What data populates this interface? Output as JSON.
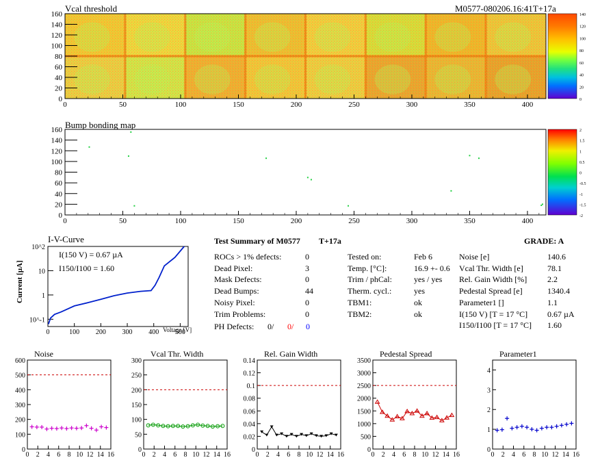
{
  "header": {
    "vcal_title": "Vcal threshold",
    "module_label": "M0577-080206.16:41T+17a",
    "bump_title": "Bump bonding map"
  },
  "maps": {
    "x_ticks": [
      "0",
      "50",
      "100",
      "150",
      "200",
      "250",
      "300",
      "350",
      "400"
    ],
    "y_ticks": [
      "0",
      "20",
      "40",
      "60",
      "80",
      "100",
      "120",
      "140",
      "160"
    ],
    "x_range": [
      0,
      416
    ],
    "y_range": [
      0,
      160
    ],
    "vcal_palette_labels": [
      "140",
      "120",
      "100",
      "80",
      "60",
      "40",
      "20",
      "0"
    ],
    "bump_palette_labels": [
      "2",
      "1.5",
      "1",
      "0.5",
      "0",
      "-0.5",
      "-1",
      "-1.5",
      "-2"
    ],
    "bump_points": [
      {
        "x": 21,
        "y": 127
      },
      {
        "x": 55,
        "y": 110
      },
      {
        "x": 57,
        "y": 155
      },
      {
        "x": 60,
        "y": 17
      },
      {
        "x": 174,
        "y": 106
      },
      {
        "x": 210,
        "y": 70
      },
      {
        "x": 213,
        "y": 66
      },
      {
        "x": 245,
        "y": 17
      },
      {
        "x": 334,
        "y": 45
      },
      {
        "x": 350,
        "y": 111
      },
      {
        "x": 358,
        "y": 106
      },
      {
        "x": 412,
        "y": 18
      },
      {
        "x": 413,
        "y": 20
      }
    ]
  },
  "iv": {
    "title": "I-V-Curve",
    "xlabel": "Voltage [V]",
    "ylabel": "Current [µA]",
    "ann1": "I(150 V) = 0.67 µA",
    "ann2": "I150/I100 = 1.60",
    "x_ticks": [
      "0",
      "100",
      "200",
      "300",
      "400",
      "500"
    ],
    "y_labels": [
      "10^2",
      "10",
      "1",
      "10^-1"
    ]
  },
  "summary": {
    "title": "Test Summary of M0577",
    "temp_tag": "T+17a",
    "grade": "GRADE:  A",
    "col1": [
      {
        "label": "ROCs > 1% defects:",
        "value": "0"
      },
      {
        "label": "Dead Pixel:",
        "value": "3"
      },
      {
        "label": "Mask Defects:",
        "value": "0"
      },
      {
        "label": "Dead Bumps:",
        "value": "44"
      },
      {
        "label": "Noisy Pixel:",
        "value": "0"
      },
      {
        "label": "Trim Problems:",
        "value": "0"
      }
    ],
    "ph_label": "PH Defects:",
    "ph_values": [
      "0/",
      "0/",
      "0"
    ],
    "ph_colors": [
      "#000000",
      "#ff0000",
      "#0000ff"
    ],
    "col2": [
      {
        "label": "Tested on:",
        "value": "Feb 6"
      },
      {
        "label": "Temp. [°C]:",
        "value": "16.9 +- 0.6"
      },
      {
        "label": "Trim / phCal:",
        "value": "yes / yes"
      },
      {
        "label": "Therm. cycl.:",
        "value": "yes"
      },
      {
        "label": "TBM1:",
        "value": "ok"
      },
      {
        "label": "TBM2:",
        "value": "ok"
      }
    ],
    "col3": [
      {
        "label": "Noise [e]",
        "value": "140.6"
      },
      {
        "label": "Vcal Thr. Width [e]",
        "value": "78.1"
      },
      {
        "label": "Rel. Gain Width [%]",
        "value": "2.2"
      },
      {
        "label": "Pedestal Spread [e]",
        "value": "1340.4"
      },
      {
        "label": "Parameter1 []",
        "value": "1.1"
      },
      {
        "label": "I(150 V) [T = 17 °C]",
        "value": "0.67 µA"
      },
      {
        "label": "I150/I100 [T = 17 °C]",
        "value": "1.60"
      }
    ]
  },
  "chart_data": [
    {
      "type": "scatter",
      "title": "Noise",
      "x": [
        0,
        1,
        2,
        3,
        4,
        5,
        6,
        7,
        8,
        9,
        10,
        11,
        12,
        13,
        14,
        15
      ],
      "values": [
        150,
        148,
        148,
        135,
        140,
        138,
        142,
        138,
        142,
        140,
        142,
        158,
        140,
        128,
        150,
        145
      ],
      "ylim": [
        0,
        600
      ],
      "yticks": [
        "0",
        "100",
        "200",
        "300",
        "400",
        "500",
        "600"
      ],
      "threshold": 500,
      "color": "#cc00cc"
    },
    {
      "type": "line",
      "title": "Vcal Thr. Width",
      "x": [
        0,
        1,
        2,
        3,
        4,
        5,
        6,
        7,
        8,
        9,
        10,
        11,
        12,
        13,
        14,
        15
      ],
      "values": [
        80,
        82,
        80,
        78,
        77,
        78,
        78,
        76,
        77,
        80,
        82,
        79,
        78,
        76,
        77,
        78
      ],
      "ylim": [
        0,
        300
      ],
      "yticks": [
        "0",
        "50",
        "100",
        "150",
        "200",
        "250",
        "300"
      ],
      "threshold": 200,
      "color": "#009900"
    },
    {
      "type": "line",
      "title": "Rel. Gain Width",
      "x": [
        0,
        1,
        2,
        3,
        4,
        5,
        6,
        7,
        8,
        9,
        10,
        11,
        12,
        13,
        14,
        15
      ],
      "values": [
        0.027,
        0.022,
        0.035,
        0.022,
        0.024,
        0.02,
        0.023,
        0.02,
        0.023,
        0.021,
        0.024,
        0.021,
        0.02,
        0.021,
        0.024,
        0.022
      ],
      "ylim": [
        0,
        0.14
      ],
      "yticks": [
        "0",
        "0.02",
        "0.04",
        "0.06",
        "0.08",
        "0.1",
        "0.12",
        "0.14"
      ],
      "threshold": 0.1,
      "color": "#000000"
    },
    {
      "type": "line",
      "title": "Pedestal Spread",
      "x": [
        0,
        1,
        2,
        3,
        4,
        5,
        6,
        7,
        8,
        9,
        10,
        11,
        12,
        13,
        14,
        15
      ],
      "values": [
        1850,
        1450,
        1300,
        1150,
        1280,
        1200,
        1480,
        1400,
        1500,
        1300,
        1400,
        1220,
        1250,
        1120,
        1230,
        1330
      ],
      "ylim": [
        0,
        3500
      ],
      "yticks": [
        "0",
        "500",
        "1000",
        "1500",
        "2000",
        "2500",
        "3000",
        "3500"
      ],
      "threshold": 2500,
      "color": "#cc0000"
    },
    {
      "type": "scatter",
      "title": "Parameter1",
      "x": [
        0,
        1,
        2,
        3,
        4,
        5,
        6,
        7,
        8,
        9,
        10,
        11,
        12,
        13,
        14,
        15
      ],
      "values": [
        0.95,
        0.98,
        1.55,
        1.05,
        1.1,
        1.15,
        1.1,
        1.0,
        0.95,
        1.05,
        1.1,
        1.1,
        1.15,
        1.2,
        1.25,
        1.3
      ],
      "ylim": [
        0,
        4.5
      ],
      "yticks": [
        "0",
        "1",
        "2",
        "3",
        "4"
      ],
      "threshold": null,
      "color": "#0000cc"
    }
  ]
}
